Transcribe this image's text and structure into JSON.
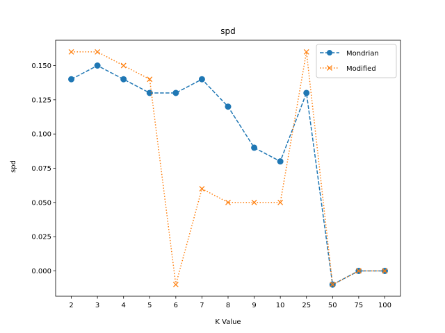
{
  "chart_data": {
    "type": "line",
    "title": "spd",
    "xlabel": "K Value",
    "ylabel": "spd",
    "categories": [
      "2",
      "3",
      "4",
      "5",
      "6",
      "7",
      "8",
      "9",
      "10",
      "25",
      "50",
      "75",
      "100"
    ],
    "ylim": [
      -0.0185,
      0.1685
    ],
    "yticks": [
      0.0,
      0.025,
      0.05,
      0.075,
      0.1,
      0.125,
      0.15
    ],
    "ytick_labels": [
      "0.000",
      "0.025",
      "0.050",
      "0.075",
      "0.100",
      "0.125",
      "0.150"
    ],
    "grid": false,
    "legend_position": "top-right",
    "series": [
      {
        "name": "Mondrian",
        "color": "#1f77b4",
        "linestyle": "dashed",
        "marker": "circle",
        "values": [
          0.14,
          0.15,
          0.14,
          0.13,
          0.13,
          0.14,
          0.12,
          0.09,
          0.08,
          0.13,
          -0.01,
          0.0,
          0.0
        ]
      },
      {
        "name": "Modified",
        "color": "#ff7f0e",
        "linestyle": "dotted",
        "marker": "x",
        "values": [
          0.16,
          0.16,
          0.15,
          0.14,
          -0.01,
          0.06,
          0.05,
          0.05,
          0.05,
          0.16,
          -0.01,
          0.0,
          0.0
        ]
      }
    ]
  }
}
